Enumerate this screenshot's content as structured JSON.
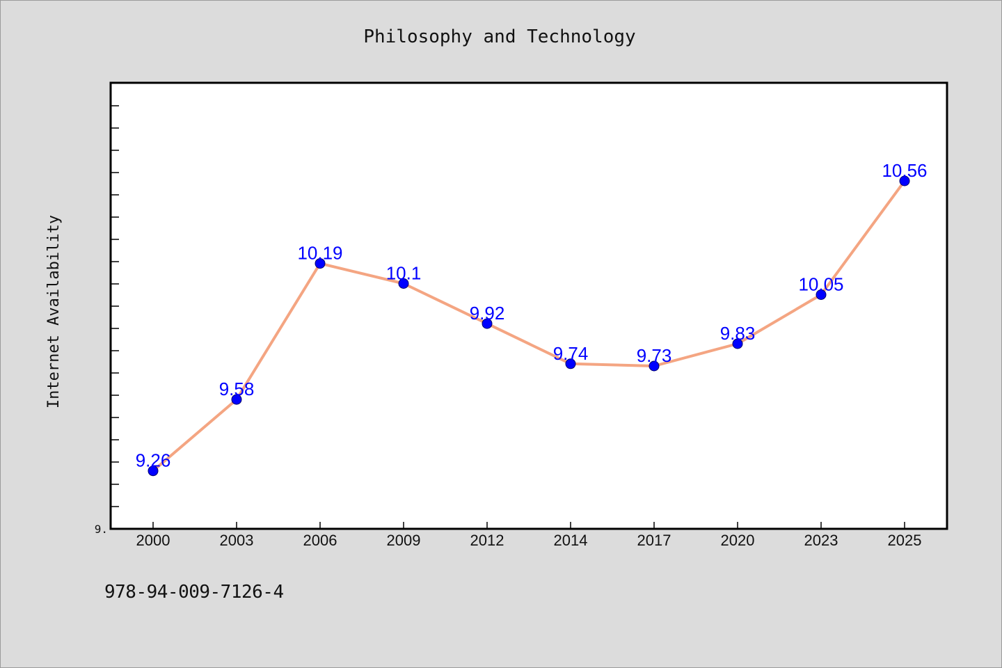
{
  "chart_data": {
    "type": "line",
    "title": "Philosophy and Technology",
    "ylabel": "Internet Availability",
    "xlabel": "",
    "categories": [
      "2000",
      "2003",
      "2006",
      "2009",
      "2012",
      "2014",
      "2017",
      "2020",
      "2023",
      "2025"
    ],
    "series": [
      {
        "values": [
          9.26,
          9.58,
          10.19,
          10.1,
          9.92,
          9.74,
          9.73,
          9.83,
          10.05,
          10.56
        ]
      }
    ],
    "data_labels": [
      "9.26",
      "9.58",
      "10.19",
      "10.1",
      "9.92",
      "9.74",
      "9.73",
      "9.83",
      "10.05",
      "10.56"
    ],
    "ylim": [
      9.0,
      11.0
    ],
    "y_tick_labels": [
      "9."
    ],
    "grid": false,
    "line_color": "#f4a582",
    "marker_color": "#0000ff",
    "label_color": "#0000ff"
  },
  "footer": {
    "code": "978-94-009-7126-4"
  }
}
